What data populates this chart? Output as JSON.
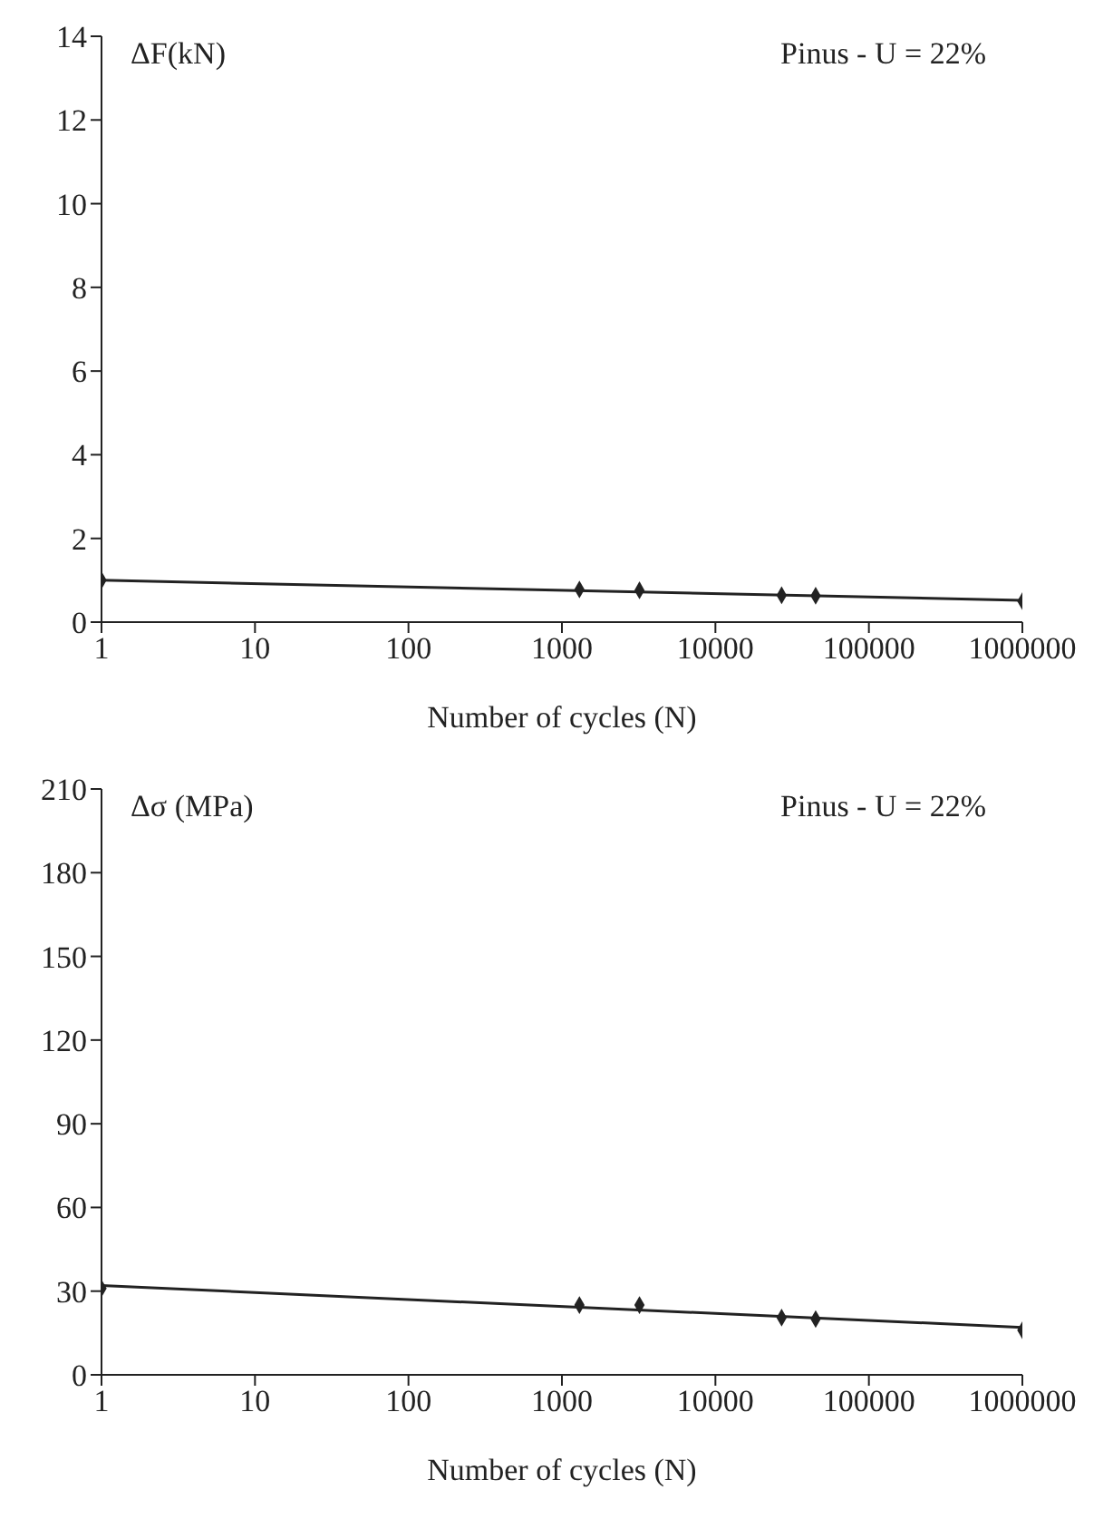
{
  "chart_data": [
    {
      "type": "scatter",
      "ylabel": "ΔF(kN)",
      "xlabel": "Number of cycles (N)",
      "annotations": [
        "Pinus - U = 22%"
      ],
      "log": "x",
      "xlim": [
        1,
        1000000
      ],
      "xticks": [
        1,
        10,
        100,
        1000,
        10000,
        100000,
        1000000
      ],
      "ylim": [
        0,
        14
      ],
      "yticks": [
        0,
        2,
        4,
        6,
        8,
        10,
        12,
        14
      ],
      "grid": false,
      "legend": false,
      "series": [
        {
          "color": "#222222",
          "marker": "diamond",
          "x": [
            1,
            1300,
            3200,
            27000,
            45000,
            1000000
          ],
          "values": [
            1.0,
            0.78,
            0.76,
            0.64,
            0.63,
            0.5
          ]
        },
        {
          "type": "line",
          "color": "#222222",
          "marker": "none",
          "x": [
            1,
            1000000
          ],
          "values": [
            1.0,
            0.52
          ]
        }
      ]
    },
    {
      "type": "scatter",
      "ylabel": "Δσ (MPa)",
      "xlabel": "Number of cycles (N)",
      "annotations": [
        "Pinus - U = 22%"
      ],
      "log": "x",
      "xlim": [
        1,
        1000000
      ],
      "xticks": [
        1,
        10,
        100,
        1000,
        10000,
        100000,
        1000000
      ],
      "ylim": [
        0,
        210
      ],
      "yticks": [
        0,
        30,
        60,
        90,
        120,
        150,
        180,
        210
      ],
      "grid": false,
      "legend": false,
      "series": [
        {
          "color": "#222222",
          "marker": "diamond",
          "x": [
            1,
            1300,
            3200,
            27000,
            45000,
            1000000
          ],
          "values": [
            31,
            25,
            25,
            20.5,
            20,
            16
          ]
        },
        {
          "type": "line",
          "color": "#222222",
          "marker": "none",
          "x": [
            1,
            1000000
          ],
          "values": [
            32,
            17
          ]
        }
      ]
    }
  ]
}
